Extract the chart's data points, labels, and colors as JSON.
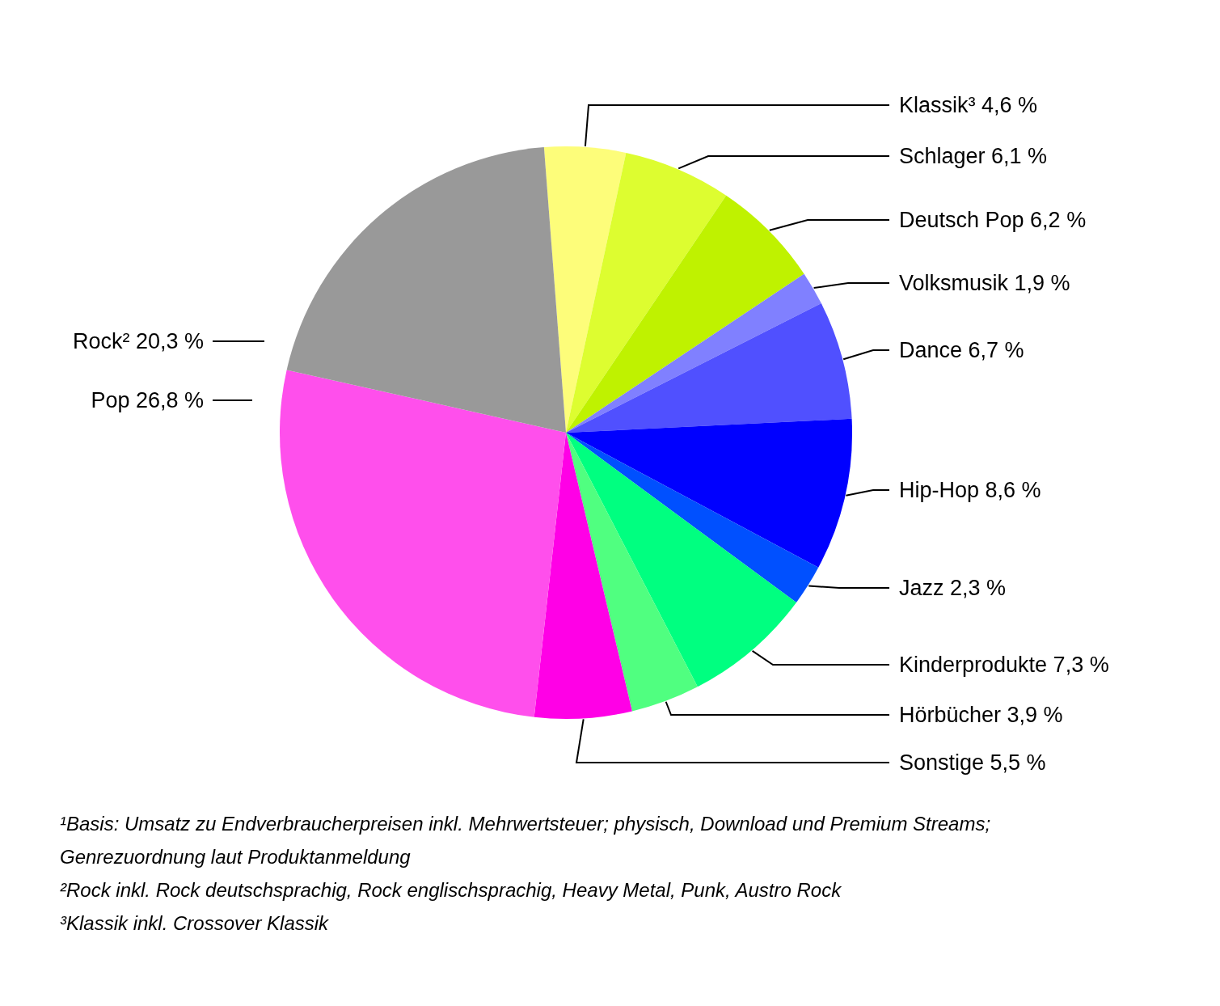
{
  "chart_data": {
    "type": "pie",
    "categories": [
      "Klassik³",
      "Schlager",
      "Deutsch Pop",
      "Volksmusik",
      "Dance",
      "Hip-Hop",
      "Jazz",
      "Kinderprodukte",
      "Hörbücher",
      "Sonstige",
      "Pop",
      "Rock²"
    ],
    "values": [
      4.6,
      6.1,
      6.2,
      1.9,
      6.7,
      8.6,
      2.3,
      7.3,
      3.9,
      5.5,
      26.8,
      20.3
    ],
    "value_labels": [
      "4,6 %",
      "6,1 %",
      "6,2 %",
      "1,9 %",
      "6,7 %",
      "8,6 %",
      "2,3 %",
      "7,3 %",
      "3,9 %",
      "5,5 %",
      "26,8 %",
      "20,3 %"
    ],
    "colors": [
      "#fdfd7a",
      "#ddfd30",
      "#bff200",
      "#8080ff",
      "#5050ff",
      "#0000ff",
      "#0050ff",
      "#00ff80",
      "#50ff80",
      "#ff00e6",
      "#ff4fec",
      "#999999"
    ],
    "annotations": [
      "¹Basis: Umsatz zu Endverbraucherpreisen inkl. Mehrwertsteuer; physisch, Download und Premium Streams; Genrezuordnung laut Produktanmeldung",
      "²Rock inkl. Rock deutschsprachig, Rock englischsprachig, Heavy Metal, Punk, Austro Rock",
      "³Klassik inkl. Crossover Klassik"
    ]
  }
}
